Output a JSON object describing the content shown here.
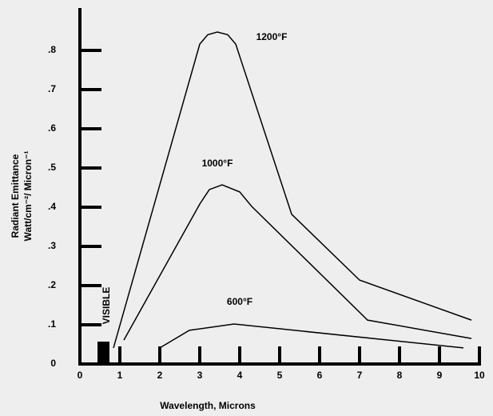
{
  "chart_data": {
    "type": "line",
    "x_label": "Wavelength, Microns",
    "y_label": [
      "Radiant Emittance",
      "Watt/cm⁻²/ Micron⁻¹"
    ],
    "annotation": "VISIBLE",
    "xlim": [
      0,
      10
    ],
    "xticks": [
      0,
      1,
      2,
      3,
      4,
      5,
      6,
      7,
      8,
      9,
      10
    ],
    "ylim": [
      0,
      0.9
    ],
    "yticks": [
      0,
      {
        "value": 0.1,
        "label": ".1"
      },
      {
        "value": 0.2,
        "label": ".2"
      },
      {
        "value": 0.3,
        "label": ".3"
      },
      {
        "value": 0.4,
        "label": ".4"
      },
      {
        "value": 0.5,
        "label": ".5"
      },
      {
        "value": 0.6,
        "label": ".6"
      },
      {
        "value": 0.7,
        "label": ".7"
      },
      {
        "value": 0.8,
        "label": ".8"
      }
    ],
    "series": [
      {
        "name": "1200°F",
        "color": "#000000",
        "x": [
          0.84,
          3.0,
          3.2,
          3.44,
          3.7,
          3.9,
          5.3,
          7.0,
          9.8
        ],
        "values": [
          0.041,
          0.816,
          0.84,
          0.847,
          0.84,
          0.816,
          0.382,
          0.214,
          0.112
        ]
      },
      {
        "name": "1000°F",
        "color": "#000000",
        "x": [
          1.1,
          3.0,
          3.24,
          3.56,
          4.0,
          4.3,
          7.2,
          9.8
        ],
        "values": [
          0.061,
          0.408,
          0.445,
          0.457,
          0.439,
          0.402,
          0.112,
          0.065
        ]
      },
      {
        "name": "600°F",
        "color": "#000000",
        "x": [
          2.0,
          2.74,
          3.86,
          9.6
        ],
        "values": [
          0.041,
          0.086,
          0.102,
          0.041
        ]
      }
    ]
  }
}
